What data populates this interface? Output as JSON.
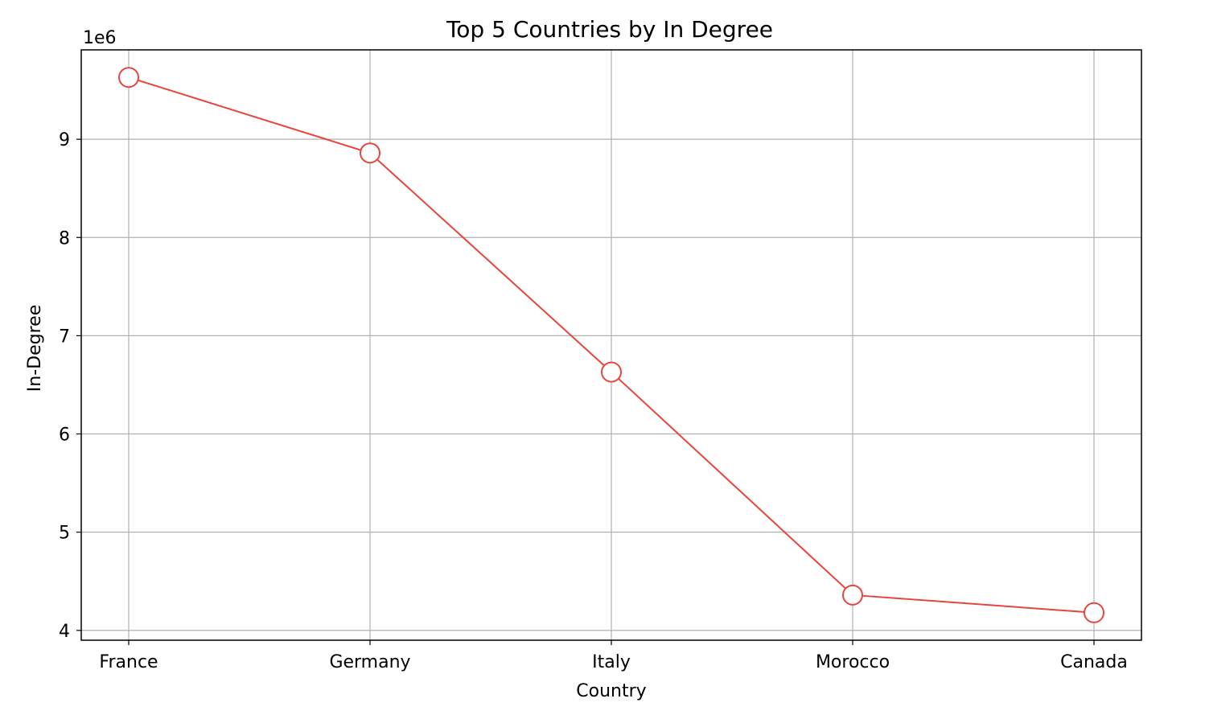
{
  "chart_data": {
    "type": "line",
    "title": "Top 5 Countries by In Degree",
    "xlabel": "Country",
    "ylabel": "In-Degree",
    "y_offset_label": "1e6",
    "categories": [
      "France",
      "Germany",
      "Italy",
      "Morocco",
      "Canada"
    ],
    "series": [
      {
        "values": [
          9630000,
          8860000,
          6630000,
          4360000,
          4180000
        ],
        "color": "#e8453c",
        "marker": "circle-open"
      }
    ],
    "ylim": [
      3900000,
      9910000
    ],
    "yticks": [
      4000000,
      5000000,
      6000000,
      7000000,
      8000000,
      9000000
    ],
    "ytick_labels": [
      "4",
      "5",
      "6",
      "7",
      "8",
      "9"
    ],
    "grid": true
  }
}
